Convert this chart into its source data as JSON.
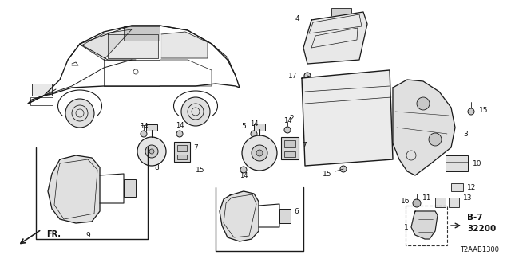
{
  "bg_color": "#ffffff",
  "diagram_code": "T2AAB1300",
  "line_color": "#1a1a1a",
  "label_color": "#111111"
}
